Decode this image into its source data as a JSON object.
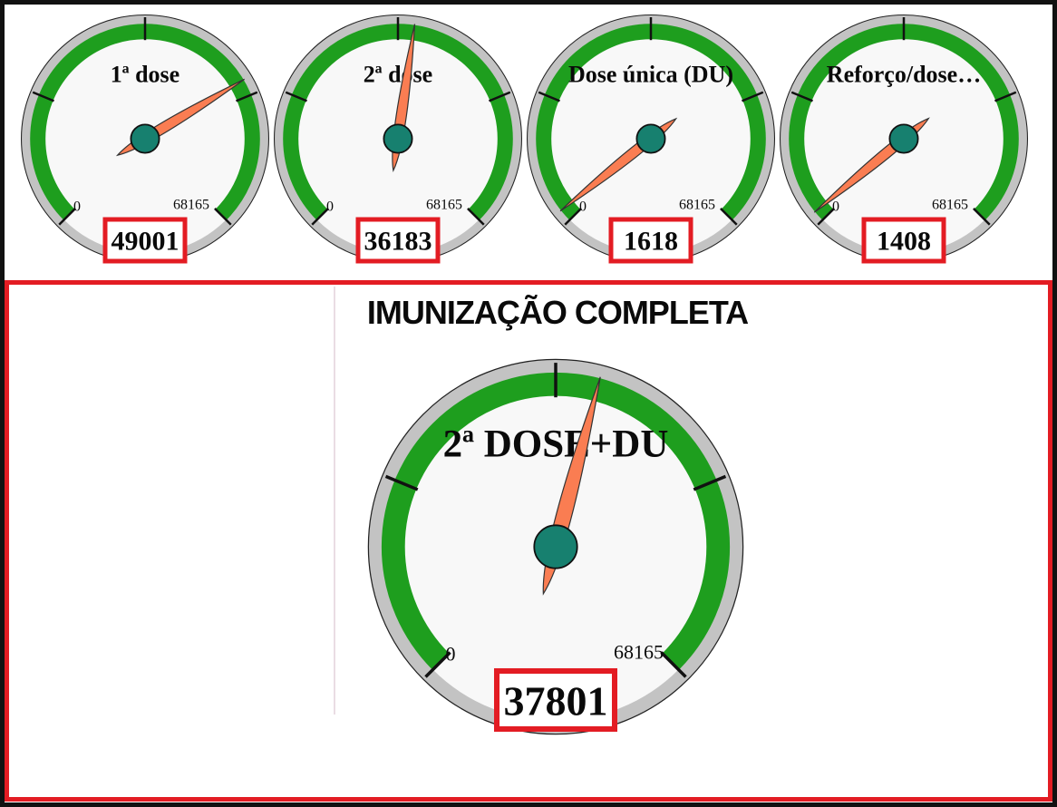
{
  "colors": {
    "arc_green": "#1E9E1E",
    "ring_gray": "#C3C3C3",
    "face": "#F8F8F8",
    "needle_coral": "#FA7D52",
    "needle_outline": "#333333",
    "hub_teal": "#17806F",
    "highlight_red": "#E31C23",
    "frame_black": "#111111",
    "divider_pink": "#EADDE4",
    "text_black": "#0a0a0a"
  },
  "gauge_scale": {
    "min": 0,
    "max": 68165,
    "min_label": "0",
    "max_label": "68165"
  },
  "bottom_panel": {
    "title": "IMUNIZAÇÃO COMPLETA"
  },
  "chart_data": [
    {
      "type": "gauge",
      "title": "1ª dose",
      "value": 49001,
      "value_label": "49001",
      "min": 0,
      "max": 68165,
      "min_label": "0",
      "max_label": "68165",
      "position": "top-row-1"
    },
    {
      "type": "gauge",
      "title": "2ª dose",
      "value": 36183,
      "value_label": "36183",
      "min": 0,
      "max": 68165,
      "min_label": "0",
      "max_label": "68165",
      "position": "top-row-2"
    },
    {
      "type": "gauge",
      "title": "Dose única (DU)",
      "value": 1618,
      "value_label": "1618",
      "min": 0,
      "max": 68165,
      "min_label": "0",
      "max_label": "68165",
      "position": "top-row-3"
    },
    {
      "type": "gauge",
      "title": "Reforço/dose…",
      "value": 1408,
      "value_label": "1408",
      "min": 0,
      "max": 68165,
      "min_label": "0",
      "max_label": "68165",
      "position": "top-row-4"
    },
    {
      "type": "gauge",
      "title": "2ª DOSE+DU",
      "value": 37801,
      "value_label": "37801",
      "min": 0,
      "max": 68165,
      "min_label": "0",
      "max_label": "68165",
      "position": "bottom-panel",
      "panel_title": "IMUNIZAÇÃO COMPLETA"
    }
  ]
}
